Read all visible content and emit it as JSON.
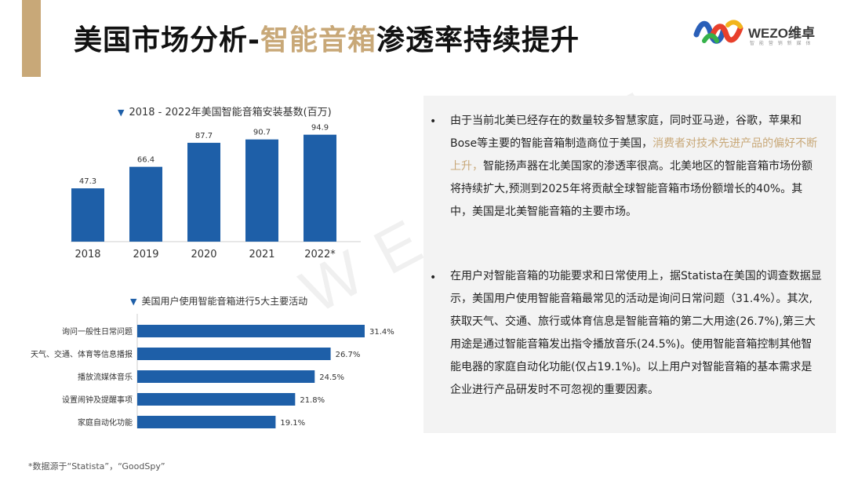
{
  "header": {
    "title_prefix": "美国市场分析-",
    "title_highlight": "智能音箱",
    "title_suffix": "渗透率持续提升",
    "accent_color": "#c8a878",
    "logo_text": "WEZO维卓",
    "logo_sub": "智 能 营 销 新 媒 体"
  },
  "watermark": "WEZO-卓",
  "chart_data": [
    {
      "type": "bar",
      "title": "2018 - 2022年美国智能音箱安装基数(百万)",
      "categories": [
        "2018",
        "2019",
        "2020",
        "2021",
        "2022*"
      ],
      "values": [
        47.3,
        66.4,
        87.7,
        90.7,
        94.9
      ],
      "value_labels": [
        "47.3",
        "66.4",
        "87.7",
        "90.7",
        "94.9"
      ],
      "ylim": [
        0,
        110
      ],
      "color": "#1e5fa8",
      "grid": false
    },
    {
      "type": "bar",
      "orientation": "horizontal",
      "title": "美国用户使用智能音箱进行5大主要活动",
      "categories": [
        "询问一般性日常问题",
        "天气、交通、体育等信息播报",
        "播放流媒体音乐",
        "设置闹钟及提醒事项",
        "家庭自动化功能"
      ],
      "values": [
        31.4,
        26.7,
        24.5,
        21.8,
        19.1
      ],
      "value_labels": [
        "31.4%",
        "26.7%",
        "24.5%",
        "21.8%",
        "19.1%"
      ],
      "xlim": [
        0,
        31.4
      ],
      "color": "#1e5fa8",
      "grid": false
    }
  ],
  "panel": {
    "bullet": "•",
    "p1_a": "由于当前北美已经存在的数量较多智慧家庭，同时亚马逊，谷歌，苹果和Bose等主要的智能音箱制造商位于美国，",
    "p1_hl": "消费者对技术先进产品的偏好不断上升，",
    "p1_b": "智能扬声器在北美国家的渗透率很高。北美地区的智能音箱市场份额将持续扩大,预测到2025年将贡献全球智能音箱市场份额增长的40%。其中，美国是北美智能音箱的主要市场。",
    "p2": "在用户对智能音箱的功能要求和日常使用上，据Statista在美国的调查数据显示，美国用户使用智能音箱最常见的活动是询问日常问题（31.4%）。其次,获取天气、交通、旅行或体育信息是智能音箱的第二大用途(26.7%),第三大用途是通过智能音箱发出指令播放音乐(24.5%)。使用智能音箱控制其他智能电器的家庭自动化功能(仅占19.1%)。以上用户对智能音箱的基本需求是企业进行产品研发时不可忽视的重要因素。"
  },
  "footnote": "*数据源于“Statista”，“GoodSpy”"
}
